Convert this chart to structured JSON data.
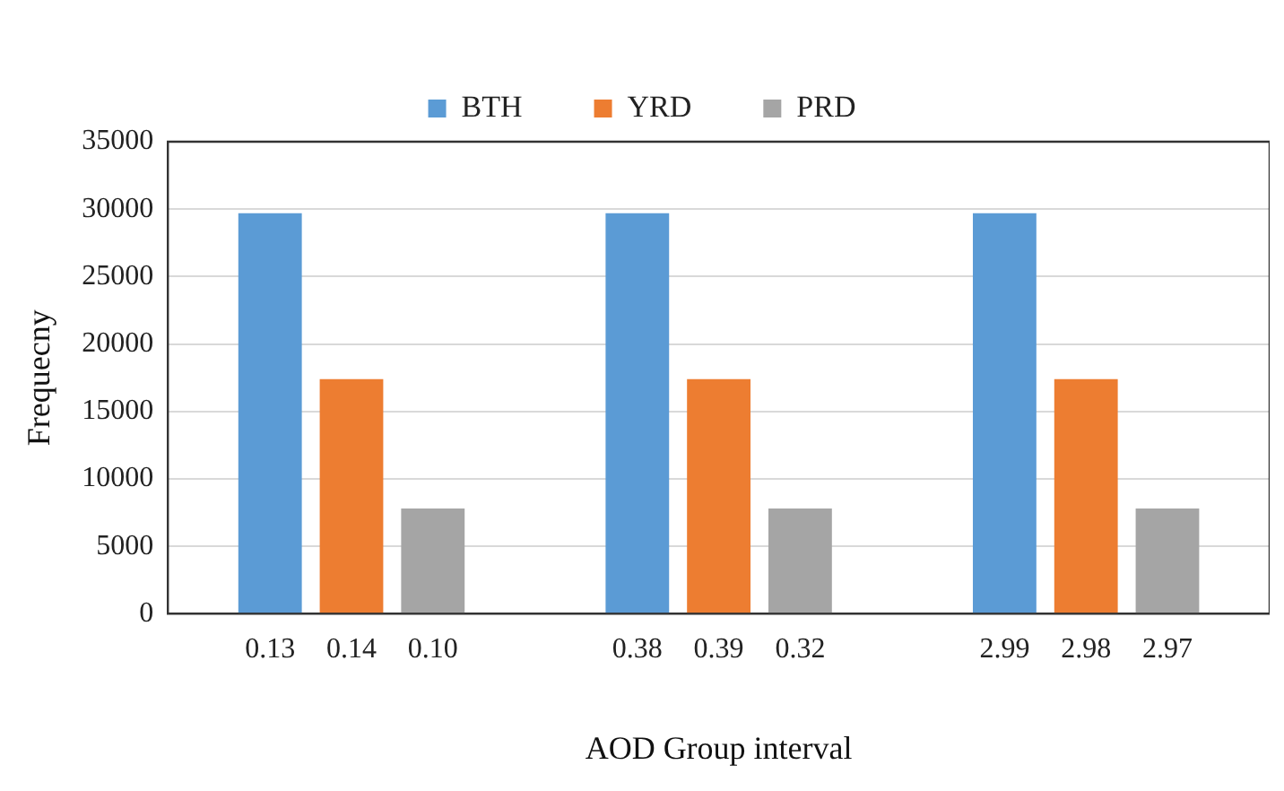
{
  "chart_data": {
    "type": "bar",
    "xlabel": "AOD Group interval",
    "ylabel": "Frequecny",
    "categories": [
      null,
      null,
      null
    ],
    "series": [
      {
        "name": "BTH",
        "color": "#5b9bd5",
        "values": [
          29700,
          29700,
          29700
        ]
      },
      {
        "name": "YRD",
        "color": "#ed7d31",
        "values": [
          17400,
          17400,
          17400
        ]
      },
      {
        "name": "PRD",
        "color": "#a5a5a5",
        "values": [
          7800,
          7800,
          7800
        ]
      }
    ],
    "annotations": [
      "0.13",
      "0.14",
      "0.10",
      "0.38",
      "0.39",
      "0.32",
      "2.99",
      "2.98",
      "2.97"
    ],
    "ylim": [
      0,
      35000
    ],
    "yticks": [
      0,
      5000,
      10000,
      15000,
      20000,
      25000,
      30000,
      35000
    ],
    "grid": "y",
    "legend": "top"
  }
}
